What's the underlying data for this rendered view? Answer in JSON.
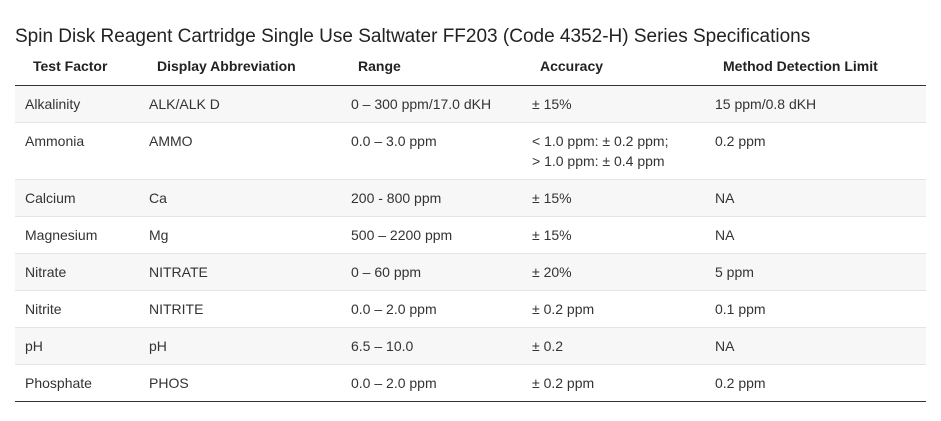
{
  "title": "Spin Disk Reagent Cartridge Single Use Saltwater FF203 (Code 4352-H) Series Specifications",
  "columns": [
    "Test Factor",
    "Display Abbreviation",
    "Range",
    "Accuracy",
    "Method Detection Limit"
  ],
  "rows": [
    {
      "test_factor": "Alkalinity",
      "abbreviation": "ALK/ALK D",
      "range": "0 – 300 ppm/17.0 dKH",
      "accuracy": [
        "± 15%"
      ],
      "mdl": "15 ppm/0.8 dKH"
    },
    {
      "test_factor": "Ammonia",
      "abbreviation": "AMMO",
      "range": "0.0 – 3.0 ppm",
      "accuracy": [
        "< 1.0 ppm: ± 0.2 ppm;",
        "> 1.0 ppm: ± 0.4 ppm"
      ],
      "mdl": "0.2 ppm"
    },
    {
      "test_factor": "Calcium",
      "abbreviation": "Ca",
      "range": "200 - 800 ppm",
      "accuracy": [
        "± 15%"
      ],
      "mdl": "NA"
    },
    {
      "test_factor": "Magnesium",
      "abbreviation": "Mg",
      "range": "500 – 2200 ppm",
      "accuracy": [
        "± 15%"
      ],
      "mdl": "NA"
    },
    {
      "test_factor": "Nitrate",
      "abbreviation": "NITRATE",
      "range": "0 – 60 ppm",
      "accuracy": [
        "± 20%"
      ],
      "mdl": "5 ppm"
    },
    {
      "test_factor": "Nitrite",
      "abbreviation": "NITRITE",
      "range": "0.0 – 2.0 ppm",
      "accuracy": [
        "± 0.2 ppm"
      ],
      "mdl": "0.1 ppm"
    },
    {
      "test_factor": "pH",
      "abbreviation": "pH",
      "range": "6.5 – 10.0",
      "accuracy": [
        "± 0.2"
      ],
      "mdl": "NA"
    },
    {
      "test_factor": "Phosphate",
      "abbreviation": "PHOS",
      "range": "0.0 – 2.0 ppm",
      "accuracy": [
        "± 0.2 ppm"
      ],
      "mdl": "0.2 ppm"
    }
  ]
}
